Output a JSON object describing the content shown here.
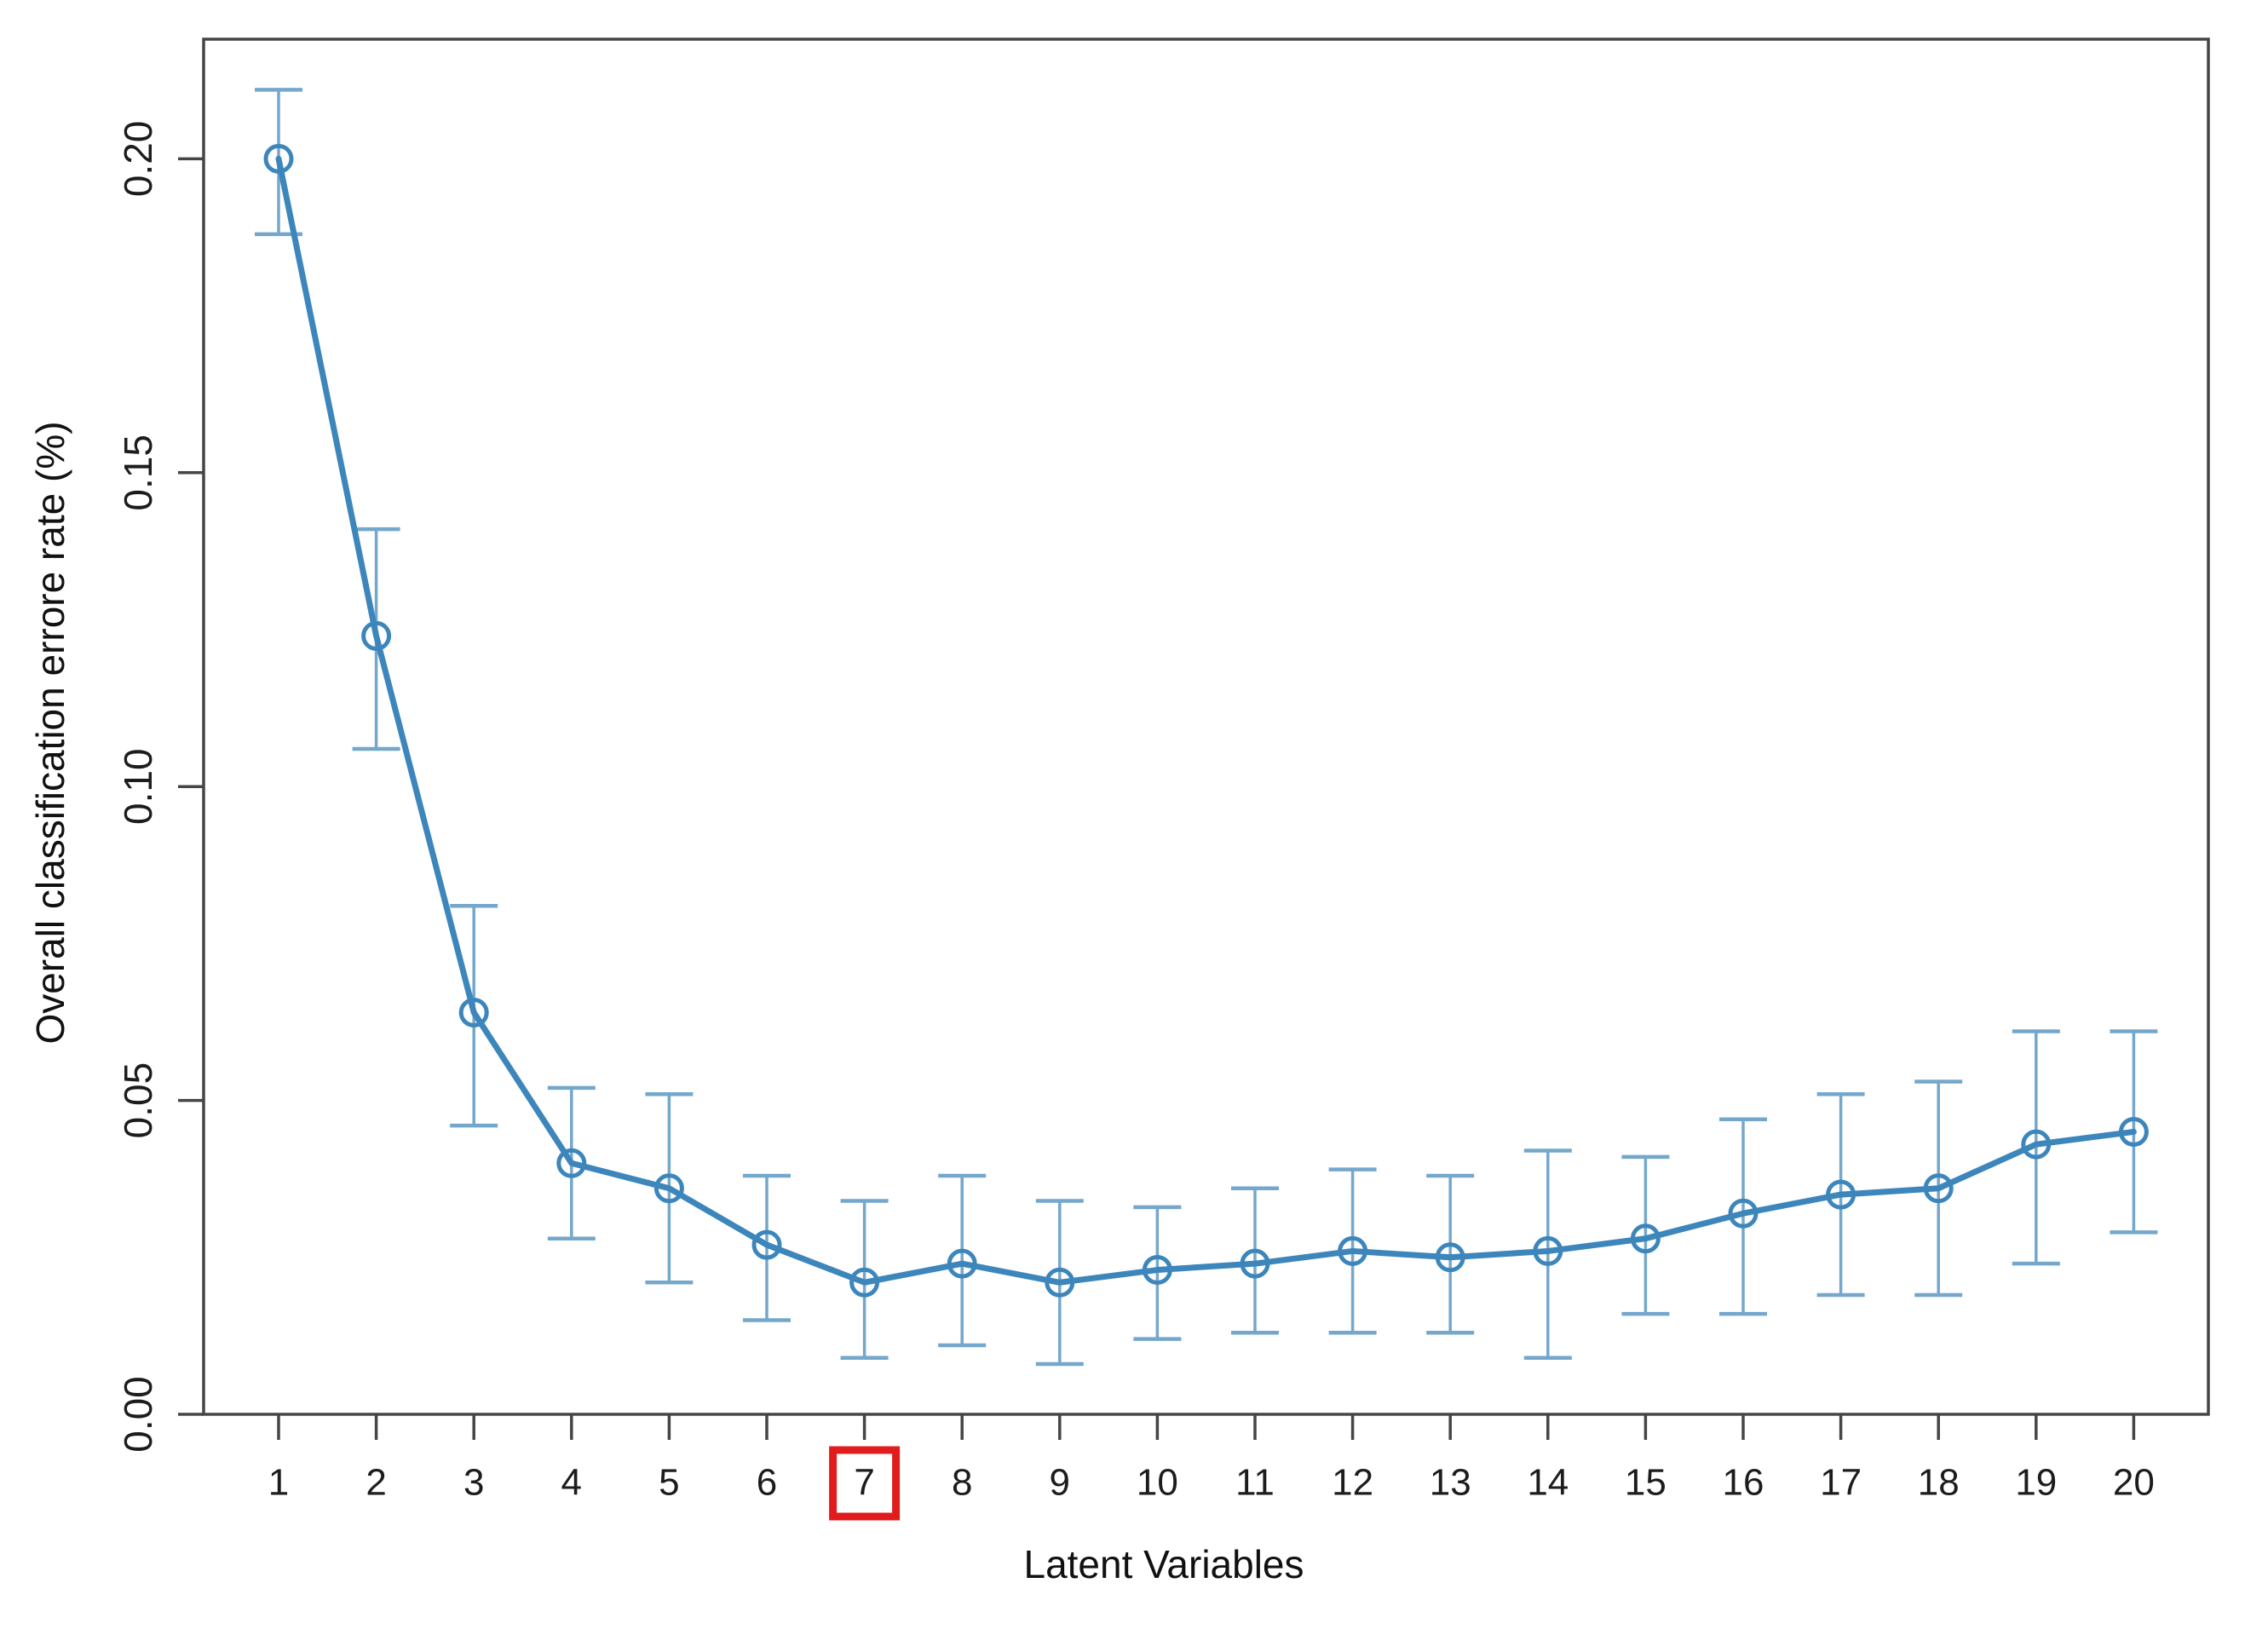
{
  "chart_data": {
    "type": "line",
    "title": "",
    "xlabel": "Latent Variables",
    "ylabel": "Overall classification errore rate (%)",
    "x": [
      1,
      2,
      3,
      4,
      5,
      6,
      7,
      8,
      9,
      10,
      11,
      12,
      13,
      14,
      15,
      16,
      17,
      18,
      19,
      20
    ],
    "x_tick_labels": [
      "1",
      "2",
      "3",
      "4",
      "5",
      "6",
      "7",
      "8",
      "9",
      "10",
      "11",
      "12",
      "13",
      "14",
      "15",
      "16",
      "17",
      "18",
      "19",
      "20"
    ],
    "y_tick_labels": [
      "0.00",
      "0.05",
      "0.10",
      "0.15",
      "0.20"
    ],
    "y_ticks": [
      0.0,
      0.05,
      0.1,
      0.15,
      0.2
    ],
    "ylim": [
      0,
      0.219
    ],
    "grid": false,
    "legend": "none",
    "highlighted_x_tick": "7",
    "marker": "open-circle",
    "error_bars": true,
    "series": [
      {
        "name": "Overall classification error rate",
        "values": [
          0.2,
          0.124,
          0.064,
          0.04,
          0.036,
          0.027,
          0.021,
          0.024,
          0.021,
          0.023,
          0.024,
          0.026,
          0.025,
          0.026,
          0.028,
          0.032,
          0.035,
          0.036,
          0.043,
          0.045
        ],
        "error_low": [
          0.188,
          0.106,
          0.046,
          0.028,
          0.021,
          0.015,
          0.009,
          0.011,
          0.008,
          0.012,
          0.013,
          0.013,
          0.013,
          0.009,
          0.016,
          0.016,
          0.019,
          0.019,
          0.024,
          0.029
        ],
        "error_high": [
          0.211,
          0.141,
          0.081,
          0.052,
          0.051,
          0.038,
          0.034,
          0.038,
          0.034,
          0.033,
          0.036,
          0.039,
          0.038,
          0.042,
          0.041,
          0.047,
          0.051,
          0.053,
          0.061,
          0.061
        ]
      }
    ],
    "colors": {
      "line": "#3d86bb",
      "error_bar": "#74a7cc",
      "marker_stroke": "#3d86bb",
      "axis": "#454545",
      "tick_label": "#1c1c1c",
      "axis_title": "#111111",
      "highlight_box": "#e11c1c",
      "background": "#ffffff"
    }
  }
}
